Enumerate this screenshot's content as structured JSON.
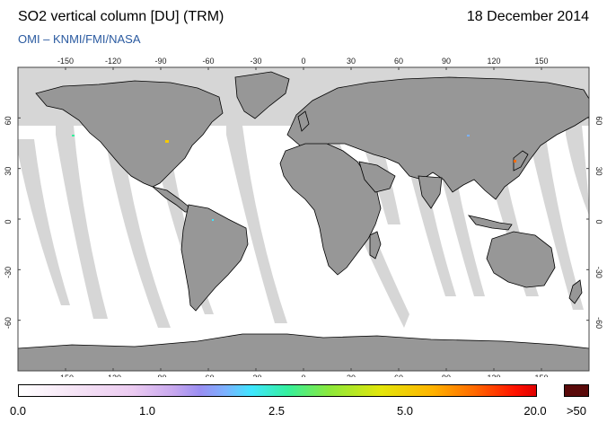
{
  "header": {
    "title": "SO2 vertical column [DU] (TRM)",
    "date": "18 December 2014",
    "source": "OMI  –  KNMI/FMI/NASA"
  },
  "map": {
    "lon_ticks": [
      -150,
      -120,
      -90,
      -60,
      -30,
      0,
      30,
      60,
      90,
      120,
      150
    ],
    "lat_ticks": [
      60,
      30,
      0,
      -30,
      -60
    ],
    "lon_range": [
      -180,
      180
    ],
    "lat_range": [
      -90,
      90
    ],
    "colors": {
      "land": "#979797",
      "no_data": "#d6d6d6",
      "ocean": "#ffffff",
      "frame": "#444444"
    }
  },
  "colorbar": {
    "labels": [
      "0.0",
      "1.0",
      "2.5",
      "5.0",
      "20.0"
    ],
    "overflow_label": ">50",
    "overflow_color": "#5a0a0a"
  }
}
